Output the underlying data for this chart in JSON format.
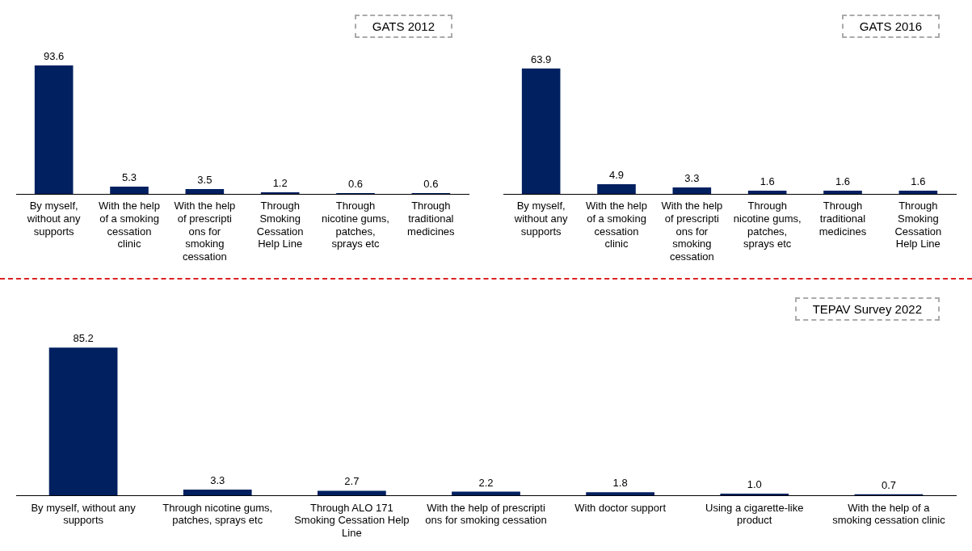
{
  "chart_data": [
    {
      "type": "bar",
      "subtitle": "GATS 2012",
      "categories": [
        "By myself, without any supports",
        "With the help of a smoking cessation clinic",
        "With the help of prescripti ons for smoking cessation",
        "Through Smoking Cessation Help Line",
        "Through nicotine gums, patches, sprays etc",
        "Through traditional medicines"
      ],
      "values": [
        93.6,
        5.3,
        3.5,
        1.2,
        0.6,
        0.6
      ],
      "color": "#002060",
      "data_labels": true,
      "tick_labels": "x",
      "grid": false,
      "legend": false
    },
    {
      "type": "bar",
      "subtitle": "GATS 2016",
      "categories": [
        "By myself, without any supports",
        "With the help of a smoking cessation clinic",
        "With the help of prescripti ons for smoking cessation",
        "Through nicotine gums, patches, sprays etc",
        "Through traditional medicines",
        "Through Smoking Cessation Help Line"
      ],
      "values": [
        63.9,
        4.9,
        3.3,
        1.6,
        1.6,
        1.6
      ],
      "color": "#002060",
      "data_labels": true,
      "tick_labels": "x",
      "grid": false,
      "legend": false
    },
    {
      "type": "bar",
      "subtitle": "TEPAV Survey 2022",
      "categories": [
        "By myself, without any supports",
        "Through nicotine gums, patches, sprays etc",
        "Through ALO 171 Smoking Cessation Help Line",
        "With the help of prescripti ons for smoking cessation",
        "With doctor support",
        "Using a cigarette-like product",
        "With the help of a smoking cessation clinic"
      ],
      "values": [
        85.2,
        3.3,
        2.7,
        2.2,
        1.8,
        1.0,
        0.7
      ],
      "value_labels": [
        "85.2",
        "3.3",
        "2.7",
        "2.2",
        "1.8",
        "1.0",
        "0.7"
      ],
      "color": "#002060",
      "tick_labels": "x",
      "grid": false,
      "legend": false
    }
  ]
}
